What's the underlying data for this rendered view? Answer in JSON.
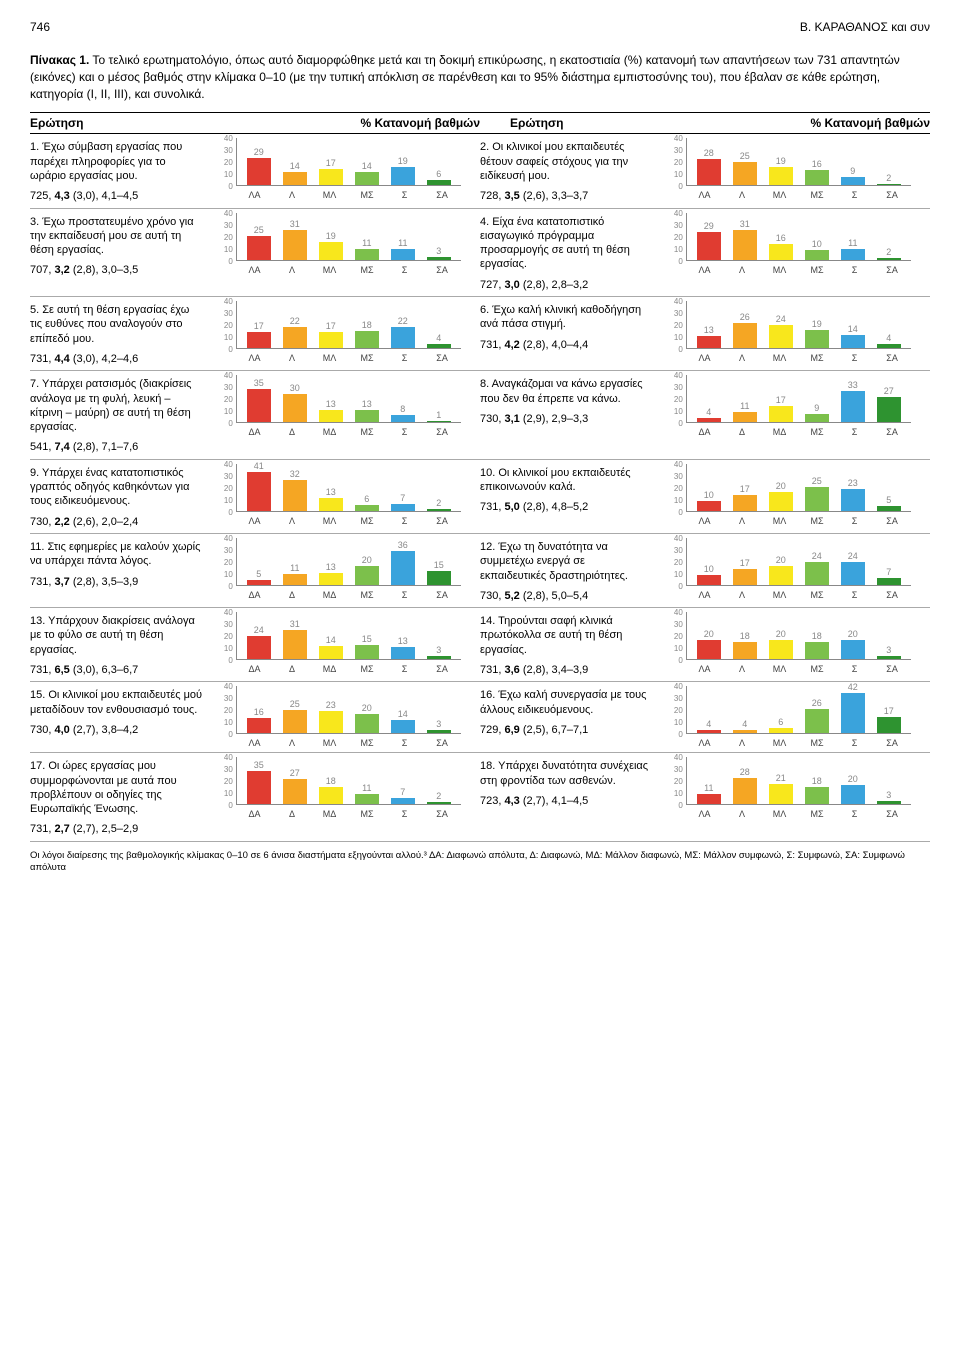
{
  "page_number": "746",
  "header_right": "Β. ΚΑΡΑΘΑΝΟΣ και συν",
  "caption": {
    "lead": "Πίνακας 1.",
    "text": " Το τελικό ερωτηματολόγιο, όπως αυτό διαμορφώθηκε μετά και τη δοκιμή επικύρωσης, η εκατοστιαία (%) κατανομή των απαντήσεων των 731 απαντητών (εικόνες) και ο μέσος βαθμός στην κλίμακα 0–10 (με την τυπική απόκλιση σε παρένθεση και το 95% διάστημα εμπιστοσύνης του), που έβαλαν σε κάθε ερώτηση, κατηγορία (I, II, III), και συνολικά."
  },
  "col_headers": [
    "Ερώτηση",
    "% Κατανομή βαθμών",
    "Ερώτηση",
    "% Κατανομή βαθμών"
  ],
  "chart_defaults": {
    "ymax": 40,
    "yticks": [
      0,
      10,
      20,
      30,
      40
    ],
    "colors": [
      "#e03c31",
      "#f5a623",
      "#f8e71c",
      "#7cc04b",
      "#3aa3dc",
      "#2e9330"
    ],
    "xlabels6_a": [
      "ΛΑ",
      "Λ",
      "ΜΛ",
      "ΜΣ",
      "Σ",
      "ΣΑ"
    ],
    "xlabels6_b": [
      "ΔΑ",
      "Δ",
      "ΜΔ",
      "ΜΣ",
      "Σ",
      "ΣΑ"
    ],
    "bg": "#ffffff",
    "axis_color": "#888888",
    "label_fontsize": 9
  },
  "questions": [
    {
      "n": "1",
      "text": "Έχω σύμβαση εργασίας που παρέχει πληροφορίες για το ωράριο εργασίας μου.",
      "stats": "725, 4,3 (3,0), 4,1–4,5",
      "values": [
        40,
        29,
        14,
        17,
        14,
        19,
        6
      ],
      "six": false,
      "xl": "a"
    },
    {
      "n": "2",
      "text": "Οι κλινικοί μου εκπαιδευτές θέτουν σαφείς στόχους για την ειδίκευσή μου.",
      "stats": "728, 3,5 (2,6), 3,3–3,7",
      "values": [
        40,
        28,
        25,
        19,
        16,
        9,
        2
      ],
      "six": false,
      "xl": "a"
    },
    {
      "n": "3",
      "text": "Έχω προστατευμένο χρόνο για την εκπαίδευσή μου σε αυτή τη θέση εργασίας.",
      "stats": "707, 3,2 (2,8), 3,0–3,5",
      "values": [
        40,
        25,
        31,
        19,
        11,
        11,
        3
      ],
      "six": false,
      "xl": "a"
    },
    {
      "n": "4",
      "text": "Είχα ένα κατατοπιστικό εισαγωγικό πρόγραμμα προσαρμογής σε αυτή τη θέση εργασίας.",
      "stats": "727, 3,0 (2,8), 2,8–3,2",
      "values": [
        40,
        29,
        31,
        16,
        10,
        11,
        2
      ],
      "six": false,
      "xl": "a"
    },
    {
      "n": "5",
      "text": "Σε αυτή τη θέση εργασίας έχω τις ευθύνες που αναλογούν στο επίπεδό μου.",
      "stats": "731, 4,4 (3,0), 4,2–4,6",
      "values": [
        40,
        17,
        22,
        17,
        18,
        22,
        4
      ],
      "six": false,
      "xl": "a"
    },
    {
      "n": "6",
      "text": "Έχω καλή κλινική καθοδήγηση ανά πάσα στιγμή.",
      "stats": "731, 4,2 (2,8), 4,0–4,4",
      "values": [
        40,
        13,
        26,
        24,
        19,
        14,
        4
      ],
      "six": false,
      "xl": "a"
    },
    {
      "n": "7",
      "text": "Υπάρχει ρατσισμός (διακρίσεις ανάλογα με τη φυλή, λευκή – κίτρινη – μαύρη) σε αυτή τη θέση εργασίας.",
      "stats": "541, 7,4 (2,8), 7,1–7,6",
      "values": [
        40,
        35,
        30,
        13,
        13,
        8,
        1
      ],
      "six": false,
      "xl": "b"
    },
    {
      "n": "8",
      "text": "Αναγκάζομαι να κάνω εργασίες που δεν θα έπρεπε να κάνω.",
      "stats": "730, 3,1 (2,9), 2,9–3,3",
      "values": [
        40,
        4,
        11,
        17,
        9,
        33,
        27
      ],
      "six": false,
      "xl": "b"
    },
    {
      "n": "9",
      "text": "Υπάρχει ένας κατατοπιστικός γραπτός οδηγός καθηκόντων για τους ειδικευόμενους.",
      "stats": "730, 2,2 (2,6), 2,0–2,4",
      "values": [
        40,
        41,
        32,
        13,
        6,
        7,
        2
      ],
      "six": false,
      "xl": "a"
    },
    {
      "n": "10",
      "text": "Οι κλινικοί μου εκπαιδευτές επικοινωνούν καλά.",
      "stats": "731, 5,0 (2,8), 4,8–5,2",
      "values": [
        40,
        10,
        17,
        20,
        25,
        23,
        5
      ],
      "six": false,
      "xl": "a"
    },
    {
      "n": "11",
      "text": "Στις εφημερίες με καλούν χωρίς να υπάρχει πάντα λόγος.",
      "stats": "731, 3,7 (2,8), 3,5–3,9",
      "values": [
        40,
        5,
        11,
        13,
        20,
        36,
        15
      ],
      "six": false,
      "xl": "b"
    },
    {
      "n": "12",
      "text": "Έχω τη δυνατότητα να συμμετέχω ενεργά σε εκπαιδευτικές δραστηριότητες.",
      "stats": "730, 5,2 (2,8), 5,0–5,4",
      "values": [
        40,
        10,
        17,
        20,
        24,
        24,
        7
      ],
      "six": false,
      "xl": "a"
    },
    {
      "n": "13",
      "text": "Υπάρχουν διακρίσεις ανάλογα με το φύλο σε αυτή τη θέση εργασίας.",
      "stats": "731, 6,5 (3,0), 6,3–6,7",
      "values": [
        40,
        24,
        31,
        14,
        15,
        13,
        3
      ],
      "six": false,
      "xl": "b"
    },
    {
      "n": "14",
      "text": "Τηρούνται σαφή κλινικά πρωτόκολλα σε αυτή τη θέση εργασίας.",
      "stats": "731, 3,6 (2,8), 3,4–3,9",
      "values": [
        40,
        20,
        18,
        20,
        18,
        20,
        3
      ],
      "six": false,
      "xl": "a"
    },
    {
      "n": "15",
      "text": "Οι κλινικοί μου εκπαιδευτές μού μεταδίδουν τον ενθουσιασμό τους.",
      "stats": "730, 4,0 (2,7), 3,8–4,2",
      "values": [
        40,
        16,
        25,
        23,
        20,
        14,
        3
      ],
      "six": false,
      "xl": "a"
    },
    {
      "n": "16",
      "text": "Έχω καλή συνεργασία με τους άλλους ειδικευόμενους.",
      "stats": "729, 6,9 (2,5), 6,7–7,1",
      "values": [
        40,
        4,
        4,
        6,
        26,
        42,
        17
      ],
      "six": false,
      "xl": "a"
    },
    {
      "n": "17",
      "text": "Οι ώρες εργασίας μου συμμορφώνονται με αυτά που προβλέπουν οι οδηγίες της Ευρωπαϊκής Ένωσης.",
      "stats": "731, 2,7 (2,7), 2,5–2,9",
      "values": [
        40,
        35,
        27,
        18,
        11,
        7,
        2
      ],
      "six": false,
      "xl": "b"
    },
    {
      "n": "18",
      "text": "Υπάρχει δυνατότητα συνέχειας στη φροντίδα των ασθενών.",
      "stats": "723, 4,3 (2,7), 4,1–4,5",
      "values": [
        40,
        11,
        28,
        21,
        18,
        20,
        3
      ],
      "six": false,
      "xl": "a"
    }
  ],
  "footnote": "Οι λόγοι διαίρεσης της βαθμολογικής κλίμακας 0–10 σε 6 άνισα διαστήματα εξηγούνται αλλού.³ ΔΑ: Διαφωνώ απόλυτα, Δ: Διαφωνώ, ΜΔ: Μάλλον διαφωνώ, ΜΣ: Μάλλον συμφωνώ, Σ: Συμφωνώ, ΣΑ: Συμφωνώ απόλυτα"
}
